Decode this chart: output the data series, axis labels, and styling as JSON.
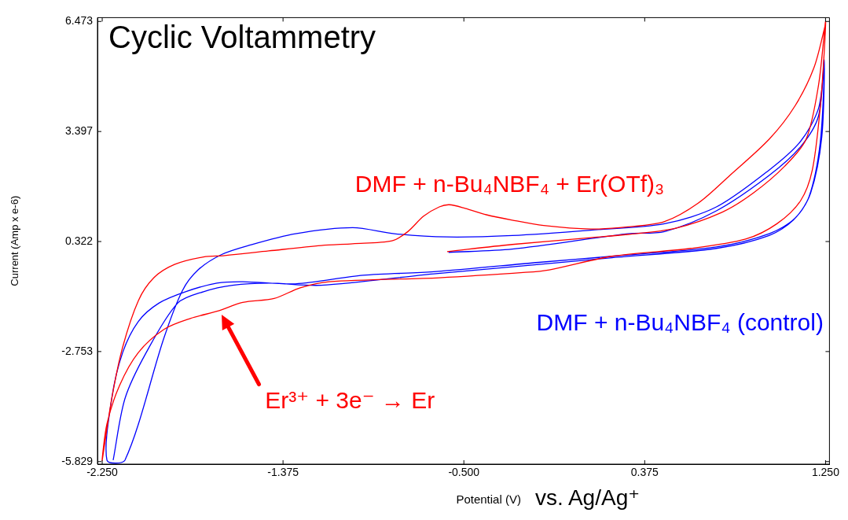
{
  "chart_data": {
    "type": "line",
    "title": "Cyclic Voltammetry",
    "xlabel": "Potential (V)",
    "ylabel": "Current (Amp x e-6)",
    "xlim": [
      -2.273,
      1.269
    ],
    "ylim": [
      -5.9,
      6.58
    ],
    "xticks": [
      {
        "value": -2.25,
        "label": "-2.250"
      },
      {
        "value": -1.375,
        "label": "-1.375"
      },
      {
        "value": -0.5,
        "label": "-0.500"
      },
      {
        "value": 0.375,
        "label": "0.375"
      },
      {
        "value": 1.25,
        "label": "1.250"
      }
    ],
    "yticks": [
      6.473,
      3.397,
      0.322,
      -2.753,
      -5.829
    ],
    "grid": false,
    "marker": "none",
    "line_style": "solid",
    "annotations": [
      "vs. Ag/Ag⁺",
      "Er³⁺ + 3e⁻ → Er"
    ],
    "series": [
      {
        "name": "DMF + n-Bu₄NBF₄ + Er(OTf)₃",
        "color": "#ff0000",
        "x": [
          -0.581,
          -0.266,
          0.114,
          0.293,
          0.521,
          0.749,
          0.901,
          1.053,
          1.156,
          1.216,
          1.25,
          1.243,
          1.224,
          1.186,
          1.129,
          1.015,
          0.863,
          0.597,
          0.217,
          -0.087,
          -0.201,
          -0.619,
          -1.152,
          -1.292,
          -1.418,
          -1.57,
          -1.684,
          -1.824,
          -1.95,
          -2.075,
          -2.166,
          -2.227,
          -2.25,
          -2.204,
          -2.151,
          -2.075,
          -2.0,
          -1.9,
          -1.76,
          -1.657,
          -1.444,
          -1.19,
          -1.038,
          -0.848,
          -0.771,
          -0.695,
          -0.619,
          -0.57,
          -0.494,
          -0.391,
          -0.266,
          -0.114,
          0.114,
          0.293,
          0.471,
          0.635,
          0.787,
          0.977,
          1.102,
          1.194,
          1.25
        ],
        "values": [
          0.04,
          0.24,
          0.43,
          0.52,
          0.69,
          1.14,
          1.68,
          2.43,
          3.18,
          4.69,
          6.47,
          5.55,
          4.04,
          2.32,
          1.46,
          0.82,
          0.39,
          0.13,
          -0.09,
          -0.47,
          -0.54,
          -0.69,
          -0.8,
          -0.97,
          -1.27,
          -1.38,
          -1.61,
          -1.83,
          -2.13,
          -2.78,
          -3.7,
          -4.77,
          -5.79,
          -4.07,
          -2.63,
          -1.33,
          -0.69,
          -0.32,
          -0.11,
          -0.07,
          0.06,
          0.21,
          0.26,
          0.34,
          0.6,
          1.03,
          1.29,
          1.35,
          1.25,
          1.07,
          0.92,
          0.77,
          0.67,
          0.73,
          0.88,
          1.4,
          2.17,
          3.18,
          4.11,
          5.18,
          6.4
        ]
      },
      {
        "name": "DMF + n-Bu₄NBF₄ (control)",
        "color": "#0000ff",
        "x": [
          -0.574,
          -0.266,
          0.293,
          0.471,
          0.722,
          0.977,
          1.129,
          1.216,
          1.243,
          1.232,
          1.178,
          1.102,
          0.977,
          0.722,
          0.217,
          -0.137,
          -0.646,
          -0.988,
          -1.315,
          -1.57,
          -1.695,
          -1.847,
          -1.976,
          -2.075,
          -2.151,
          -2.204,
          -2.227,
          -2.14,
          -1.95,
          -1.862,
          -1.786,
          -1.672,
          -1.543,
          -1.315,
          -1.038,
          -0.836,
          -0.581,
          -0.266,
          0.114,
          0.471,
          0.722,
          0.977,
          1.129,
          1.216,
          1.243,
          1.224,
          1.17,
          1.094,
          0.977,
          0.722,
          0.217,
          -0.137,
          -0.646,
          -1.19,
          -1.444,
          -1.619,
          -1.76,
          -1.885,
          -2.037,
          -2.14,
          -2.197
        ],
        "values": [
          0.02,
          0.11,
          0.54,
          0.6,
          1.18,
          2.17,
          2.97,
          3.83,
          5.4,
          3.25,
          1.68,
          0.97,
          0.54,
          0.17,
          -0.09,
          -0.26,
          -0.52,
          -0.62,
          -0.86,
          -0.8,
          -0.84,
          -1.08,
          -1.4,
          -1.91,
          -2.78,
          -4.07,
          -5.79,
          -5.79,
          -2.35,
          -1.05,
          -0.47,
          -0.04,
          0.21,
          0.54,
          0.71,
          0.54,
          0.45,
          0.49,
          0.64,
          0.82,
          1.29,
          2.32,
          3.12,
          4.04,
          5.18,
          3.07,
          1.57,
          0.92,
          0.49,
          0.13,
          -0.13,
          -0.32,
          -0.58,
          -0.9,
          -0.84,
          -0.9,
          -1.08,
          -1.4,
          -2.78,
          -4.07,
          -5.79
        ]
      }
    ]
  }
}
